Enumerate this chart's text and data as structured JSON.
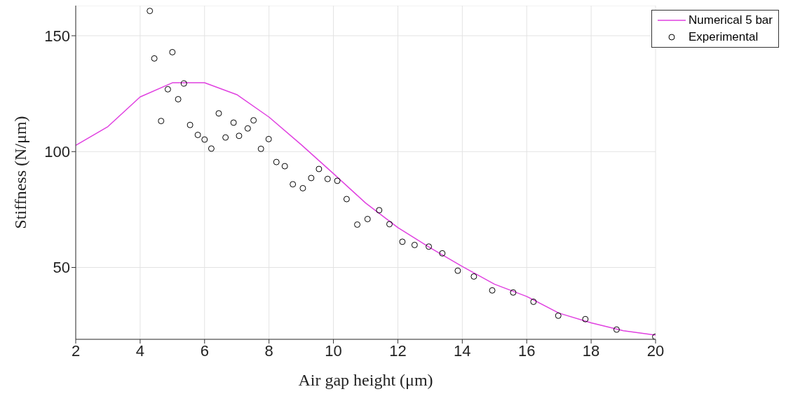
{
  "chart_data": {
    "type": "scatter",
    "xlabel": "Air gap height (μm)",
    "ylabel": "Stiffness (N/μm)",
    "xlim": [
      2,
      20
    ],
    "ylim": [
      19,
      163
    ],
    "xticks": [
      2,
      4,
      6,
      8,
      10,
      12,
      14,
      16,
      18,
      20
    ],
    "yticks": [
      50,
      100,
      150
    ],
    "grid": true,
    "legend": "top right",
    "series": [
      {
        "name": "Numerical 5 bar",
        "type": "line",
        "color": "#e040e0",
        "marker": "none",
        "line_style": "solid",
        "x": [
          2,
          3,
          4,
          5,
          6,
          7,
          8,
          9,
          10,
          11,
          12,
          13,
          14,
          15,
          16,
          17,
          18,
          19,
          20
        ],
        "values": [
          102.7,
          110.8,
          123.6,
          129.7,
          129.7,
          124.6,
          114.9,
          103,
          90.5,
          77.8,
          67.2,
          58.5,
          50.4,
          42.8,
          37.5,
          30.3,
          26.1,
          22.7,
          20.8
        ]
      },
      {
        "name": "Experimental",
        "color": "#000000",
        "marker": "circle",
        "x": [
          4.3,
          4.44,
          4.65,
          4.86,
          5.0,
          5.18,
          5.36,
          5.55,
          5.79,
          6.0,
          6.21,
          6.44,
          6.65,
          6.9,
          7.07,
          7.34,
          7.52,
          7.75,
          7.99,
          8.23,
          8.49,
          8.74,
          9.05,
          9.31,
          9.55,
          9.82,
          10.12,
          10.41,
          10.74,
          11.06,
          11.42,
          11.74,
          12.14,
          12.52,
          12.96,
          13.38,
          13.86,
          14.36,
          14.93,
          15.58,
          16.21,
          16.98,
          17.82,
          18.79,
          19.99
        ],
        "values": [
          160.7,
          140.2,
          113.2,
          126.9,
          142.9,
          122.6,
          129.4,
          111.5,
          107.2,
          105.2,
          101.3,
          116.5,
          106.1,
          112.5,
          106.8,
          110,
          113.5,
          101.2,
          105.4,
          95.5,
          93.7,
          85.9,
          84.2,
          88.6,
          92.5,
          88.2,
          87.4,
          79.5,
          68.5,
          70.9,
          74.7,
          68.7,
          61.1,
          59.7,
          59,
          56.1,
          48.6,
          46.1,
          40.1,
          39.2,
          35.2,
          29.2,
          27.7,
          23.2,
          20.1
        ]
      }
    ]
  }
}
